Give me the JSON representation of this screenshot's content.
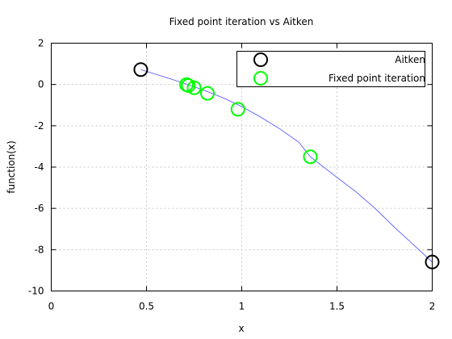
{
  "chart_data": {
    "type": "scatter",
    "title": "Fixed point iteration vs Aitken",
    "xlabel": "x",
    "ylabel": "function(x)",
    "xlim": [
      0,
      2
    ],
    "ylim": [
      -10,
      2
    ],
    "x_ticks": [
      0,
      0.5,
      1,
      1.5,
      2
    ],
    "x_tick_labels": [
      "0",
      "0.5",
      "1",
      "1.5",
      "2"
    ],
    "y_ticks": [
      2,
      0,
      -2,
      -4,
      -6,
      -8,
      -10
    ],
    "y_tick_labels": [
      "2",
      "0",
      "-2",
      "-4",
      "-6",
      "-8",
      "-10"
    ],
    "grid": true,
    "legend_position": "top-right",
    "curve": {
      "color": "#4a4aff",
      "x": [
        0.47,
        0.6,
        0.7,
        0.8,
        0.9,
        1.0,
        1.1,
        1.2,
        1.3,
        1.36,
        1.5,
        1.6,
        1.7,
        1.8,
        1.9,
        2.0
      ],
      "y": [
        0.72,
        0.35,
        0.05,
        -0.27,
        -0.64,
        -1.07,
        -1.58,
        -2.15,
        -2.8,
        -3.5,
        -4.5,
        -5.2,
        -6.0,
        -6.9,
        -7.75,
        -8.6
      ]
    },
    "series": [
      {
        "name": "Aitken",
        "color": "#000000",
        "x": [
          0.47,
          2.0
        ],
        "y": [
          0.72,
          -8.6
        ]
      },
      {
        "name": "Fixed point iteration",
        "color": "#00ff00",
        "x": [
          1.36,
          0.98,
          0.82,
          0.75,
          0.72,
          0.71
        ],
        "y": [
          -3.5,
          -1.2,
          -0.43,
          -0.16,
          -0.05,
          -0.01
        ]
      }
    ]
  }
}
